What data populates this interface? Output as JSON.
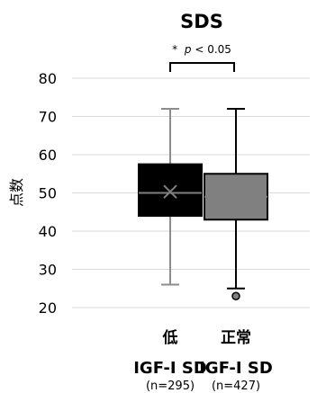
{
  "chart_data": {
    "type": "box",
    "title": "SDS",
    "ylabel": "点数",
    "ylim": [
      20,
      80
    ],
    "yticks": [
      "20",
      "30",
      "40",
      "50",
      "60",
      "70",
      "80"
    ],
    "grid": true,
    "significance": {
      "star": "*",
      "p": "p",
      "rest": " < 0.05"
    },
    "groups": [
      {
        "label_line1": "低",
        "label_line2": "IGF-I SD",
        "label_line3": "(n=295)",
        "whisker_low": 26,
        "q1": 44,
        "median": 50,
        "q3": 57.5,
        "whisker_high": 72,
        "mean": 50.3,
        "outliers": [],
        "color": "#000000",
        "whisker_color": "#8c8c8c"
      },
      {
        "label_line1": "正常",
        "label_line2": "IGF-I SD",
        "label_line3": "(n=427)",
        "whisker_low": 25,
        "q1": 43,
        "median": 49,
        "q3": 55,
        "whisker_high": 72,
        "mean": 49,
        "outliers": [
          23
        ],
        "color": "#808080",
        "whisker_color": "#000000"
      }
    ]
  }
}
